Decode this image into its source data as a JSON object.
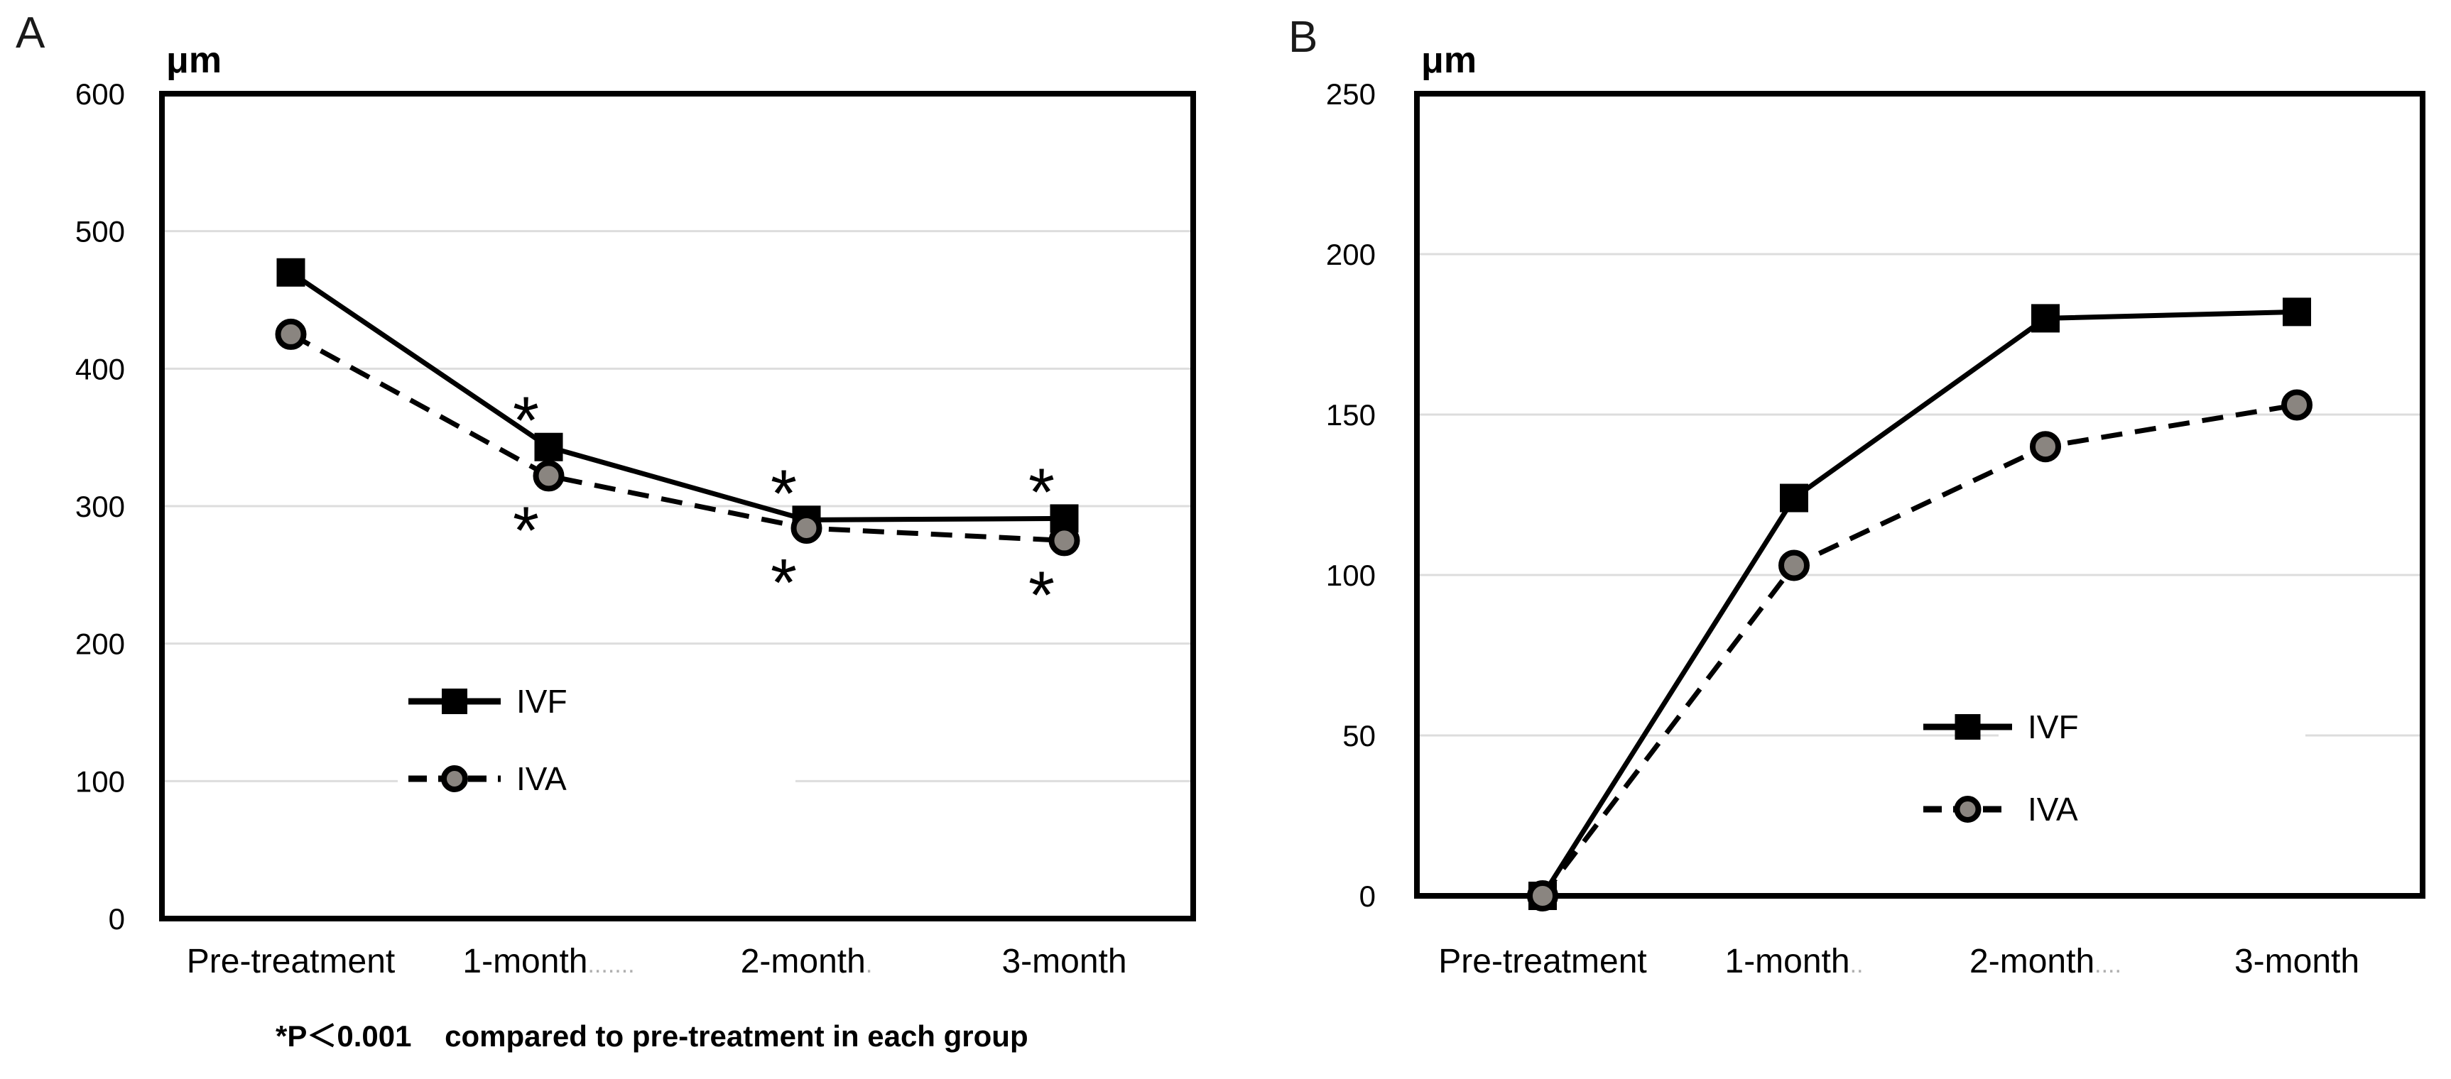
{
  "panels": [
    {
      "corner_label": "A",
      "axis_title": "μm"
    },
    {
      "corner_label": "B",
      "axis_title": "μm"
    }
  ],
  "footnote": "*P＜0.001    compared to pre-treatment in each group",
  "colors": {
    "line": "#000000",
    "iva_marker_fill": "#8a8580",
    "grid": "#dddddd",
    "text": "#000000",
    "trail_dots": "#b0b0b0",
    "background": "#ffffff"
  },
  "chart_data": [
    {
      "type": "line",
      "panel": "A",
      "title": "",
      "ylabel": "μm",
      "xlabel": "",
      "categories": [
        "Pre-treatment",
        "1-month",
        "2-month",
        "3-month"
      ],
      "category_trailing_dots": [
        "",
        ".......",
        ".",
        ""
      ],
      "series": [
        {
          "name": "IVF",
          "values": [
            470,
            343,
            290,
            291
          ],
          "line": "solid",
          "marker": "square"
        },
        {
          "name": "IVA",
          "values": [
            425,
            322,
            284,
            275
          ],
          "line": "dashed",
          "marker": "circle"
        }
      ],
      "ylim": [
        0,
        600
      ],
      "ytick_step": 100,
      "yticks": [
        0,
        100,
        200,
        300,
        400,
        500,
        600
      ],
      "grid": true,
      "legend_position": "inside-lower-left",
      "annotations": [
        {
          "series": "IVF",
          "category_index": 1,
          "symbol": "*",
          "position": "above"
        },
        {
          "series": "IVA",
          "category_index": 1,
          "symbol": "*",
          "position": "below"
        },
        {
          "series": "IVF",
          "category_index": 2,
          "symbol": "*",
          "position": "above"
        },
        {
          "series": "IVA",
          "category_index": 2,
          "symbol": "*",
          "position": "below"
        },
        {
          "series": "IVF",
          "category_index": 3,
          "symbol": "*",
          "position": "above"
        },
        {
          "series": "IVA",
          "category_index": 3,
          "symbol": "*",
          "position": "below"
        }
      ]
    },
    {
      "type": "line",
      "panel": "B",
      "title": "",
      "ylabel": "μm",
      "xlabel": "",
      "categories": [
        "Pre-treatment",
        "1-month",
        "2-month",
        "3-month"
      ],
      "category_trailing_dots": [
        "",
        "..",
        "....",
        ""
      ],
      "series": [
        {
          "name": "IVF",
          "values": [
            0,
            124,
            180,
            182
          ],
          "line": "solid",
          "marker": "square"
        },
        {
          "name": "IVA",
          "values": [
            0,
            103,
            140,
            153
          ],
          "line": "dashed",
          "marker": "circle"
        }
      ],
      "ylim": [
        0,
        250
      ],
      "ytick_step": 50,
      "yticks": [
        0,
        50,
        100,
        150,
        200,
        250
      ],
      "grid": true,
      "legend_position": "inside-lower-right",
      "annotations": []
    }
  ]
}
